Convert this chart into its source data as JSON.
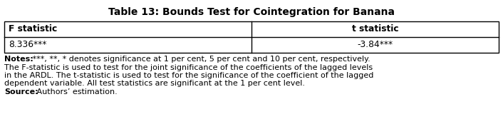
{
  "title": "Table 13: Bounds Test for Cointegration for Banana",
  "col_headers": [
    "F statistic",
    "t statistic"
  ],
  "row_values": [
    "8.336***",
    "-3.84***"
  ],
  "notes_bold": "Notes:",
  "notes_line1": " ***, **, * denotes significance at 1 per cent, 5 per cent and 10 per cent, respectively.",
  "notes_line2": "The F-statistic is used to test for the joint significance of the coefficients of the lagged levels",
  "notes_line3": "in the ARDL. The t-statistic is used to test for the significance of the coefficient of the lagged",
  "notes_line4": "dependent variable. All test statistics are significant at the 1 per cent level.",
  "source_bold": "Source:",
  "source_text": " Authors’ estimation.",
  "background_color": "#ffffff",
  "text_color": "#000000",
  "title_fontsize": 10.0,
  "header_fontsize": 8.8,
  "value_fontsize": 8.8,
  "notes_fontsize": 8.0
}
